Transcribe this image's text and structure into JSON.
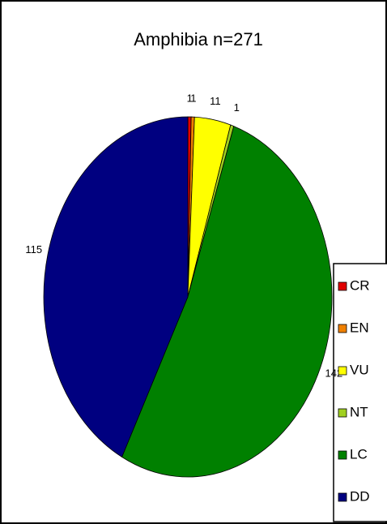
{
  "chart_data": {
    "type": "pie",
    "title": "Amphibia n=271",
    "categories": [
      "CR",
      "EN",
      "VU",
      "NT",
      "LC",
      "DD"
    ],
    "values": [
      1,
      1,
      11,
      1,
      142,
      115
    ],
    "colors": [
      "#e00000",
      "#f08000",
      "#ffff00",
      "#a0d020",
      "#008000",
      "#000080"
    ],
    "legend": "right"
  }
}
